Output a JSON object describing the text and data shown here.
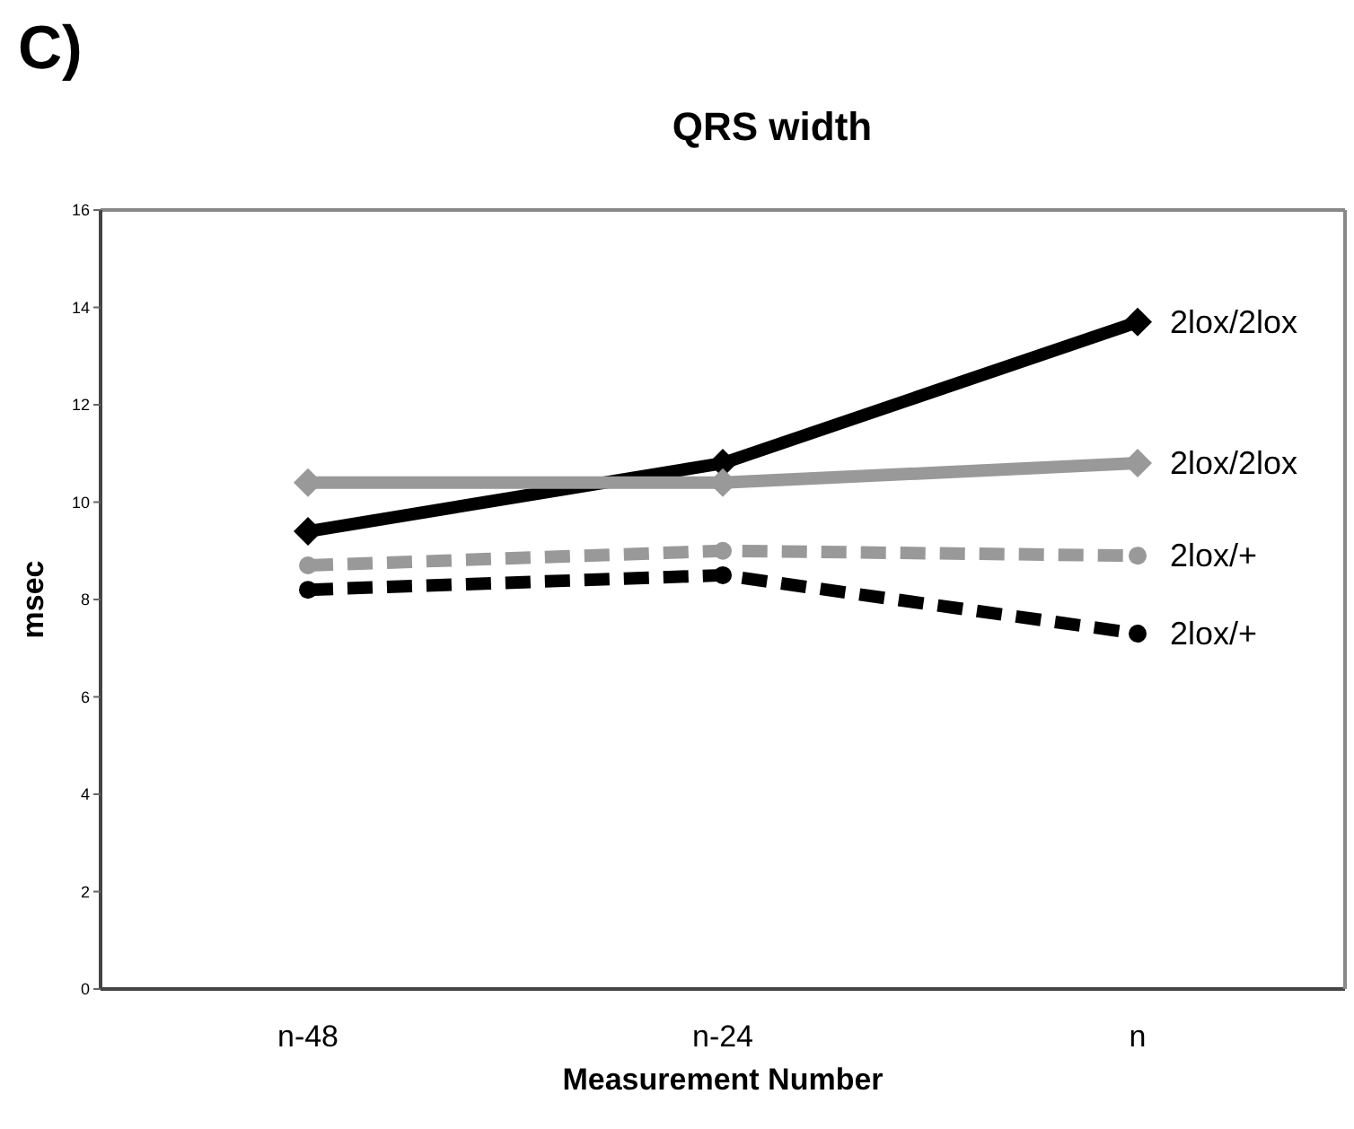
{
  "chart_data": {
    "type": "line",
    "title": "QRS width",
    "xlabel": "Measurement Number",
    "ylabel": "msec",
    "annotations": [
      "C)"
    ],
    "categories": [
      "n-48",
      "n-24",
      "n"
    ],
    "ylim": [
      0,
      16
    ],
    "yticks": [
      0,
      2,
      4,
      6,
      8,
      10,
      12,
      14,
      16
    ],
    "series": [
      {
        "name": "2lox/2lox",
        "color": "#000000",
        "values": [
          9.4,
          10.8,
          13.7
        ],
        "marker": "diamond",
        "line_style": "solid"
      },
      {
        "name": "2lox/2lox",
        "color": "#999999",
        "values": [
          10.4,
          10.4,
          10.8
        ],
        "marker": "diamond",
        "line_style": "solid"
      },
      {
        "name": "2lox/+",
        "color": "#999999",
        "values": [
          8.7,
          9.0,
          8.9
        ],
        "marker": "circle",
        "line_style": "dashed"
      },
      {
        "name": "2lox/+",
        "color": "#000000",
        "values": [
          8.2,
          8.5,
          7.3
        ],
        "marker": "circle",
        "line_style": "dashed"
      }
    ]
  }
}
